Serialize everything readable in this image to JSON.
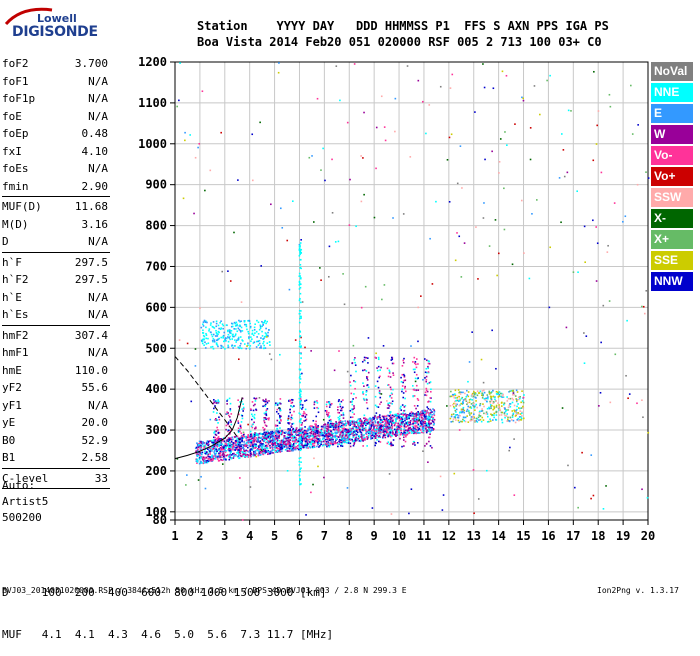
{
  "logo": {
    "top": "Lowell",
    "bottom": "DIGISONDE"
  },
  "header": {
    "line1": "Station    YYYY DAY   DDD HHMMSS P1  FFS S AXN PPS IGA PS",
    "line2": "Boa Vista 2014 Feb20 051 020000 RSF 005 2 713 100 03+ C0"
  },
  "params_group1": [
    {
      "name": "foF2",
      "value": "3.700"
    },
    {
      "name": "foF1",
      "value": "N/A"
    },
    {
      "name": "foF1p",
      "value": "N/A"
    },
    {
      "name": "foE",
      "value": "N/A"
    },
    {
      "name": "foEp",
      "value": "0.48"
    },
    {
      "name": "fxI",
      "value": "4.10"
    },
    {
      "name": "foEs",
      "value": "N/A"
    },
    {
      "name": "fmin",
      "value": "2.90"
    }
  ],
  "params_group2": [
    {
      "name": "MUF(D)",
      "value": "11.68"
    },
    {
      "name": "M(D)",
      "value": "3.16"
    },
    {
      "name": "D",
      "value": "N/A"
    }
  ],
  "params_group3": [
    {
      "name": "h`F",
      "value": "297.5"
    },
    {
      "name": "h`F2",
      "value": "297.5"
    },
    {
      "name": "h`E",
      "value": "N/A"
    },
    {
      "name": "h`Es",
      "value": "N/A"
    }
  ],
  "params_group4": [
    {
      "name": "hmF2",
      "value": "307.4"
    },
    {
      "name": "hmF1",
      "value": "N/A"
    },
    {
      "name": "hmE",
      "value": "110.0"
    },
    {
      "name": "yF2",
      "value": "55.6"
    },
    {
      "name": "yF1",
      "value": "N/A"
    },
    {
      "name": "yE",
      "value": "20.0"
    },
    {
      "name": "B0",
      "value": "52.9"
    },
    {
      "name": "B1",
      "value": "2.58"
    }
  ],
  "clevel": {
    "name": "C-level",
    "value": "33"
  },
  "auto": {
    "line1": "Auto:",
    "line2": "Artist5",
    "line3": "500200"
  },
  "bottom_table": {
    "d_row": "D     100  200  400  600  800 1000 1500 3000 [km]",
    "muf_row": "MUF   4.1  4.1  4.3  4.6  5.0  5.6  7.3 11.7 [MHz]"
  },
  "footer": {
    "left": "BVJ03_2014051020000.RSF / 384fx512h 50 kHz 2.5 km / DPS-4D BVJ03 003 / 2.8 N 299.3 E",
    "right": "Ion2Png v. 1.3.17"
  },
  "chart_data": {
    "type": "scatter",
    "title": "",
    "xlabel": "",
    "ylabel": "",
    "xlim": [
      1,
      20
    ],
    "ylim": [
      80,
      1200
    ],
    "xticks": [
      1,
      2,
      3,
      4,
      5,
      6,
      7,
      8,
      9,
      10,
      11,
      12,
      13,
      14,
      15,
      16,
      17,
      18,
      19,
      20
    ],
    "yticks": [
      80,
      100,
      200,
      300,
      400,
      500,
      600,
      700,
      800,
      900,
      1000,
      1100,
      1200
    ],
    "grid": true,
    "legend_position": "right",
    "series": [
      {
        "name": "NoVal",
        "color": "#808080"
      },
      {
        "name": "NNE",
        "color": "#00ffff"
      },
      {
        "name": "E",
        "color": "#3399ff"
      },
      {
        "name": "W",
        "color": "#990099"
      },
      {
        "name": "Vo-",
        "color": "#ff3399"
      },
      {
        "name": "Vo+",
        "color": "#cc0000"
      },
      {
        "name": "SSW",
        "color": "#ffaaaa"
      },
      {
        "name": "X-",
        "color": "#006600"
      },
      {
        "name": "X+",
        "color": "#66bb66"
      },
      {
        "name": "SSE",
        "color": "#cccc00"
      },
      {
        "name": "NNW",
        "color": "#0000cc"
      }
    ],
    "profile_curve": [
      [
        1.0,
        230
      ],
      [
        1.5,
        238
      ],
      [
        2.0,
        248
      ],
      [
        2.5,
        262
      ],
      [
        3.0,
        280
      ],
      [
        3.3,
        300
      ],
      [
        3.5,
        330
      ],
      [
        3.7,
        380
      ]
    ],
    "dashed_curve": [
      [
        1.0,
        480
      ],
      [
        1.5,
        445
      ],
      [
        2.0,
        405
      ],
      [
        2.5,
        365
      ],
      [
        3.0,
        325
      ],
      [
        3.3,
        300
      ],
      [
        3.6,
        275
      ]
    ]
  }
}
